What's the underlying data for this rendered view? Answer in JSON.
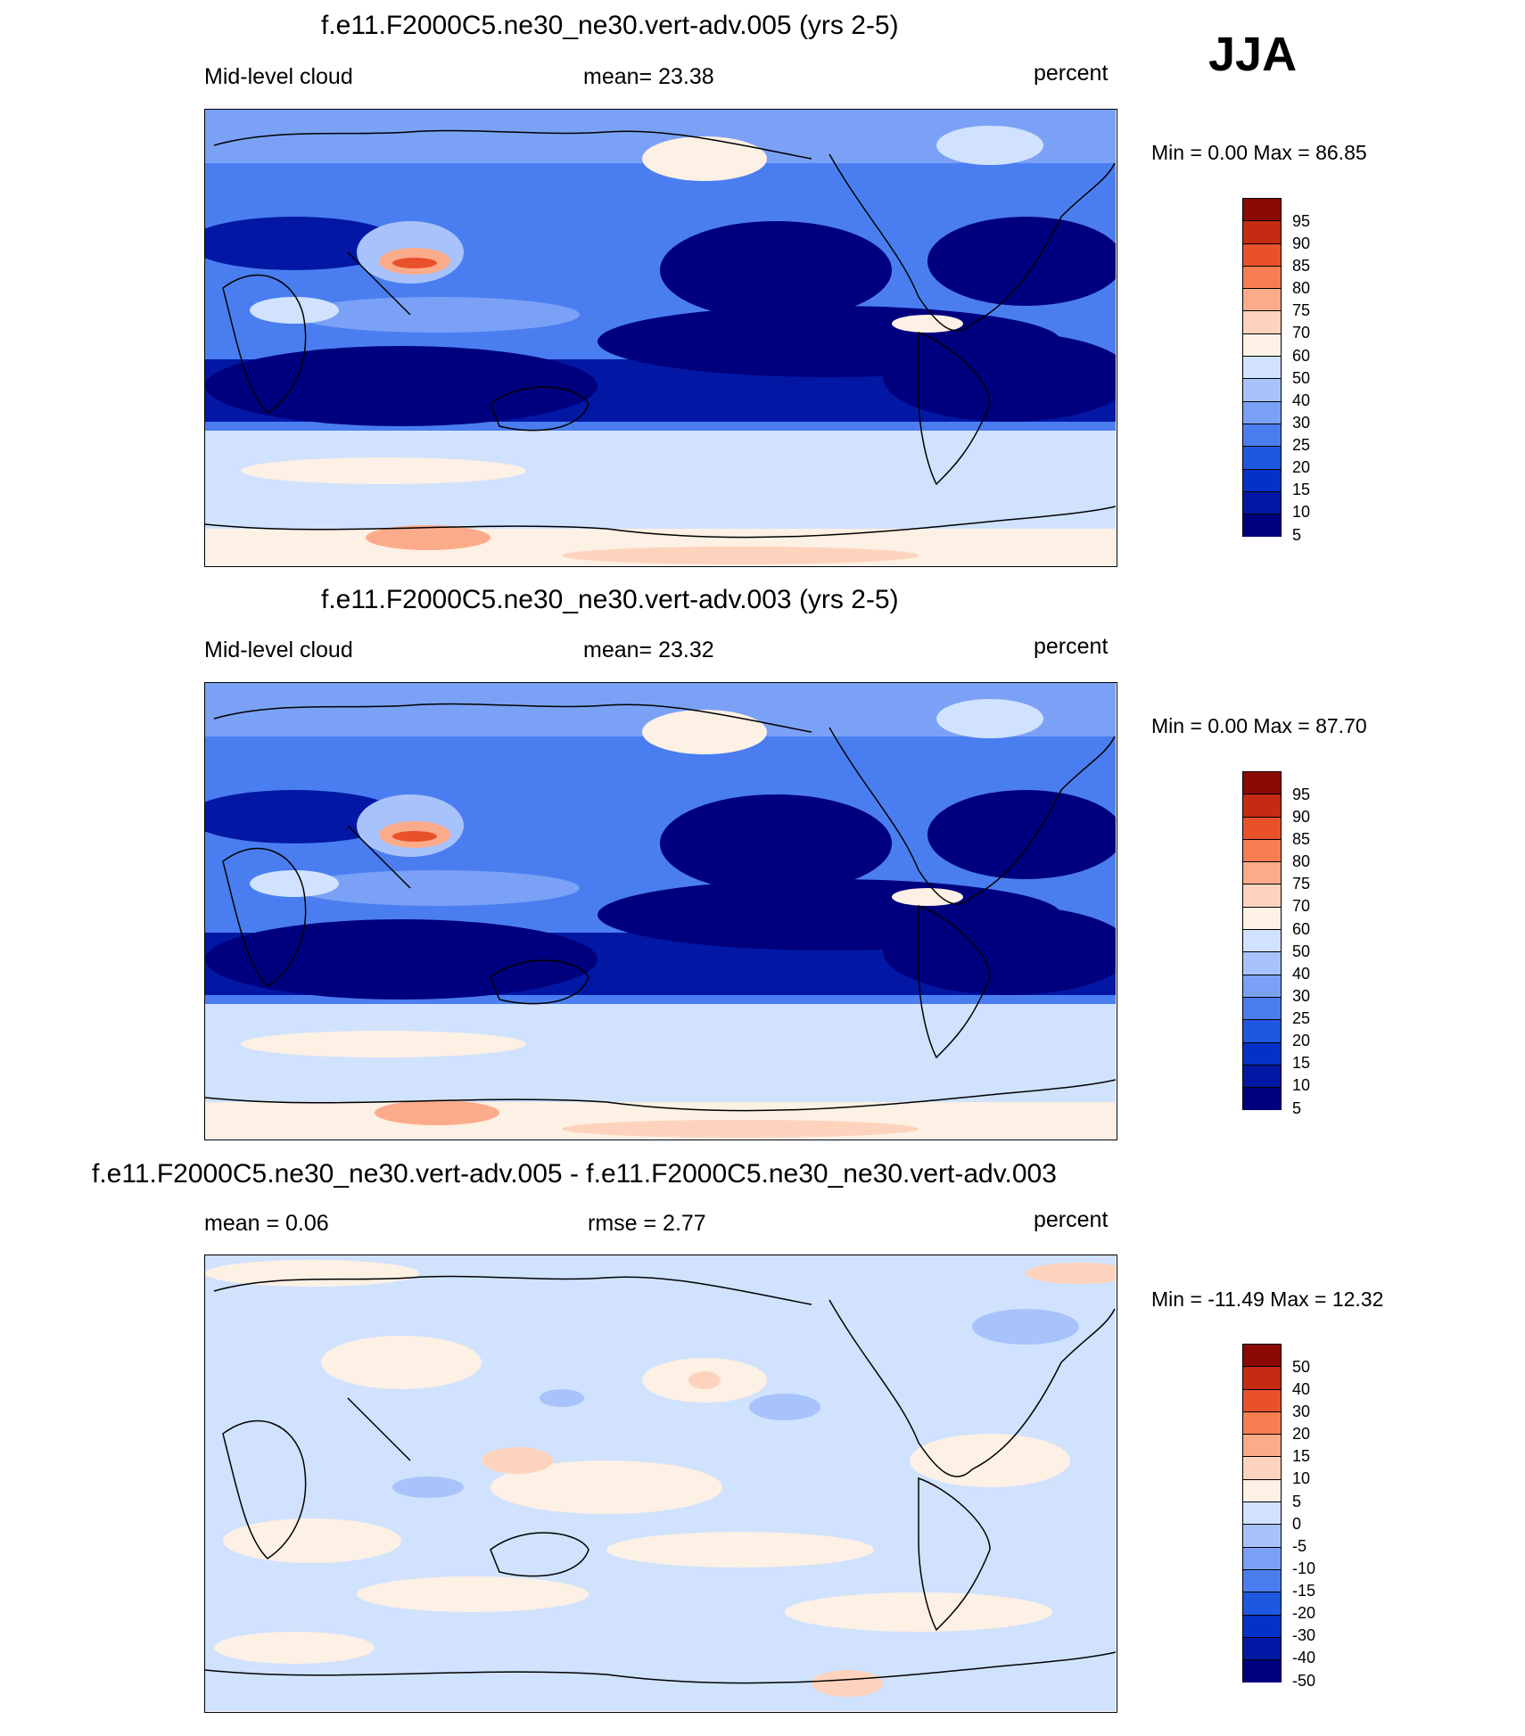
{
  "season": "JJA",
  "palettes": {
    "abs": [
      "#00007f",
      "#0218a4",
      "#0432c8",
      "#1f58e0",
      "#4a7ef0",
      "#7ba1f7",
      "#a8c3fb",
      "#d0e2fd",
      "#fdf0e4",
      "#fdd3bd",
      "#fcab8a",
      "#f77e52",
      "#e9512a",
      "#c42b12",
      "#8b0a05"
    ],
    "diff": [
      "#00007f",
      "#0218a4",
      "#0432c8",
      "#1f58e0",
      "#4a7ef0",
      "#7ba1f7",
      "#a8c3fb",
      "#d0e2fd",
      "#fdf0e4",
      "#fdd3bd",
      "#fcab8a",
      "#f77e52",
      "#e9512a",
      "#c42b12",
      "#8b0a05"
    ]
  },
  "panels": [
    {
      "title": "f.e11.F2000C5.ne30_ne30.vert-adv.005 (yrs 2-5)",
      "left_label": "Mid-level cloud",
      "center_label": "mean=  23.38",
      "right_label": "percent",
      "minmax": "Min =   0.00 Max =  86.85",
      "colorbar_labels": [
        "95",
        "90",
        "85",
        "80",
        "75",
        "70",
        "60",
        "50",
        "40",
        "30",
        "25",
        "20",
        "15",
        "10",
        "5"
      ]
    },
    {
      "title": "f.e11.F2000C5.ne30_ne30.vert-adv.003 (yrs 2-5)",
      "left_label": "Mid-level cloud",
      "center_label": "mean=  23.32",
      "right_label": "percent",
      "minmax": "Min =   0.00 Max =  87.70",
      "colorbar_labels": [
        "95",
        "90",
        "85",
        "80",
        "75",
        "70",
        "60",
        "50",
        "40",
        "30",
        "25",
        "20",
        "15",
        "10",
        "5"
      ]
    },
    {
      "title": "f.e11.F2000C5.ne30_ne30.vert-adv.005 - f.e11.F2000C5.ne30_ne30.vert-adv.003",
      "left_label": "mean =   0.06",
      "center_label": "rmse =   2.77",
      "right_label": "percent",
      "minmax": "Min = -11.49 Max =  12.32",
      "colorbar_labels": [
        "50",
        "40",
        "30",
        "20",
        "15",
        "10",
        "5",
        "0",
        "-5",
        "-10",
        "-15",
        "-20",
        "-30",
        "-40",
        "-50"
      ]
    }
  ],
  "chart_data": [
    {
      "type": "heatmap",
      "title": "f.e11.F2000C5.ne30_ne30.vert-adv.005 (yrs 2-5)",
      "variable": "Mid-level cloud",
      "units": "percent",
      "season": "JJA",
      "mean": 23.38,
      "min": 0.0,
      "max": 86.85,
      "contour_levels": [
        5,
        10,
        15,
        20,
        25,
        30,
        40,
        50,
        60,
        70,
        75,
        80,
        85,
        90,
        95
      ],
      "projection": "cylindrical equidistant, centered on Pacific"
    },
    {
      "type": "heatmap",
      "title": "f.e11.F2000C5.ne30_ne30.vert-adv.003 (yrs 2-5)",
      "variable": "Mid-level cloud",
      "units": "percent",
      "season": "JJA",
      "mean": 23.32,
      "min": 0.0,
      "max": 87.7,
      "contour_levels": [
        5,
        10,
        15,
        20,
        25,
        30,
        40,
        50,
        60,
        70,
        75,
        80,
        85,
        90,
        95
      ],
      "projection": "cylindrical equidistant, centered on Pacific"
    },
    {
      "type": "heatmap",
      "title": "f.e11.F2000C5.ne30_ne30.vert-adv.005 - f.e11.F2000C5.ne30_ne30.vert-adv.003",
      "units": "percent",
      "season": "JJA",
      "mean": 0.06,
      "rmse": 2.77,
      "min": -11.49,
      "max": 12.32,
      "contour_levels": [
        -50,
        -40,
        -30,
        -20,
        -15,
        -10,
        -5,
        0,
        5,
        10,
        15,
        20,
        30,
        40,
        50
      ],
      "projection": "cylindrical equidistant, centered on Pacific"
    }
  ]
}
